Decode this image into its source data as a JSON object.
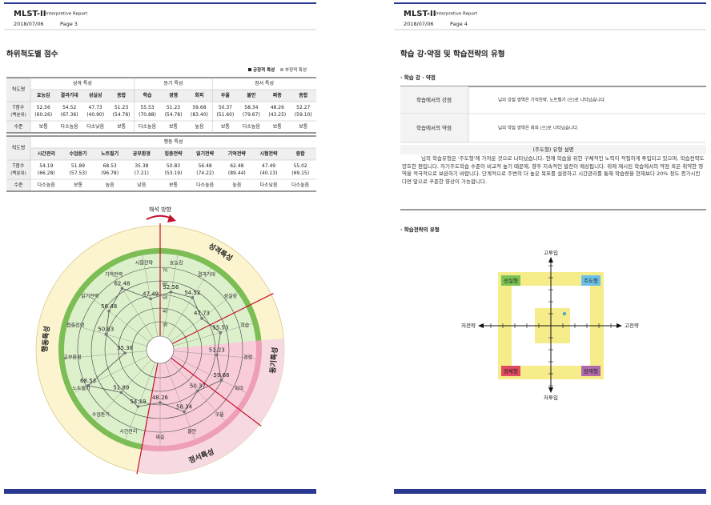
{
  "pages": [
    {
      "brand": "MLST-II",
      "subtitle": "Interpretive Report",
      "date": "2018/07/06",
      "page": "Page 3"
    },
    {
      "brand": "MLST-II",
      "subtitle": "Interpretive Report",
      "date": "2018/07/06",
      "page": "Page 4"
    }
  ],
  "scores": {
    "title": "하위척도별 점수",
    "legend": [
      "긍정적 특성",
      "부정적 특성"
    ],
    "row_header": "척도명",
    "t_label": "T점수",
    "pct_label": "(백분위)",
    "level_label": "수준",
    "groups": [
      {
        "name": "성격 특성",
        "scales": [
          {
            "name": "효능감",
            "t": 52.56,
            "pct": "(60.26)",
            "level": "보통"
          },
          {
            "name": "결과기대",
            "t": 54.52,
            "pct": "(67.36)",
            "level": "다소높음"
          },
          {
            "name": "성실성",
            "t": 47.73,
            "pct": "(40.90)",
            "level": "다소낮음"
          },
          {
            "name": "종합",
            "t": 51.23,
            "pct": "(54.78)",
            "level": "보통"
          }
        ]
      },
      {
        "name": "동기 특성",
        "scales": [
          {
            "name": "학습",
            "t": 55.53,
            "pct": "(70.88)",
            "level": "다소높음"
          },
          {
            "name": "경쟁",
            "t": 51.23,
            "pct": "(54.78)",
            "level": "보통"
          },
          {
            "name": "회피",
            "t": 59.68,
            "pct": "(83.40)",
            "level": "높음"
          }
        ]
      },
      {
        "name": "정서 특성",
        "scales": [
          {
            "name": "우울",
            "t": 50.37,
            "pct": "(51.60)",
            "level": "보통"
          },
          {
            "name": "불안",
            "t": 58.34,
            "pct": "(79.67)",
            "level": "다소높음"
          },
          {
            "name": "짜증",
            "t": 48.26,
            "pct": "(43.25)",
            "level": "보통"
          },
          {
            "name": "종합",
            "t": 52.27,
            "pct": "(59.10)",
            "level": "보통"
          }
        ]
      },
      {
        "name": "행동 특성",
        "scales": [
          {
            "name": "시간관리",
            "t": 54.19,
            "pct": "(66.28)",
            "level": "다소높음"
          },
          {
            "name": "수업듣기",
            "t": 51.89,
            "pct": "(57.53)",
            "level": "보통"
          },
          {
            "name": "노트필기",
            "t": 68.53,
            "pct": "(96.78)",
            "level": "높음"
          },
          {
            "name": "공부환경",
            "t": 35.38,
            "pct": "(7.21)",
            "level": "낮음"
          },
          {
            "name": "집중전략",
            "t": 50.83,
            "pct": "(53.19)",
            "level": "보통"
          },
          {
            "name": "읽기전략",
            "t": 56.48,
            "pct": "(74.22)",
            "level": "다소높음"
          },
          {
            "name": "기억전략",
            "t": 62.48,
            "pct": "(89.44)",
            "level": "높음"
          },
          {
            "name": "시험전략",
            "t": 47.49,
            "pct": "(40.13)",
            "level": "다소낮음"
          },
          {
            "name": "종합",
            "t": 55.02,
            "pct": "(69.15)",
            "level": "다소높음"
          }
        ]
      }
    ]
  },
  "radar": {
    "direction": "해석 방향",
    "rlim": [
      20,
      80
    ],
    "rticks": [
      30,
      40,
      50,
      60,
      70
    ],
    "sectors": [
      {
        "name": "성격특성",
        "axes": [
          {
            "name": "효능감",
            "value": 52.56
          },
          {
            "name": "결과기대",
            "value": 54.52
          },
          {
            "name": "성실성",
            "value": 47.73
          }
        ]
      },
      {
        "name": "동기특성",
        "axes": [
          {
            "name": "학습",
            "value": 55.53
          },
          {
            "name": "경쟁",
            "value": 51.23,
            "negative": true
          },
          {
            "name": "회피",
            "value": 59.68,
            "negative": true
          }
        ]
      },
      {
        "name": "정서특성",
        "axes": [
          {
            "name": "우울",
            "value": 50.37,
            "negative": true
          },
          {
            "name": "불안",
            "value": 58.34,
            "negative": true
          },
          {
            "name": "짜증",
            "value": 48.26,
            "negative": true
          }
        ]
      },
      {
        "name": "행동특성",
        "axes": [
          {
            "name": "시간관리",
            "value": 54.19
          },
          {
            "name": "수업듣기",
            "value": 51.89
          },
          {
            "name": "노트필기",
            "value": 68.53
          },
          {
            "name": "공부환경",
            "value": 35.38
          },
          {
            "name": "집중전략",
            "value": 50.83
          },
          {
            "name": "읽기전략",
            "value": 56.48
          },
          {
            "name": "기억전략",
            "value": 62.48
          },
          {
            "name": "시험전략",
            "value": 47.49
          }
        ]
      }
    ]
  },
  "strengths": {
    "title": "학습 강·약점 및 학습전략의 유형",
    "heading": "· 학습 강 · 약점",
    "rows": [
      {
        "label": "학습에서의 강점",
        "text": "님의 강점 영역은 기억전략, 노트필기 (으)로 나타났습니다."
      },
      {
        "label": "학습에서의 약점",
        "text": "님의 약점 영역은 회피 (으)로 나타났습니다."
      }
    ],
    "type_header": "(주도형) 유형 설명",
    "type_text": "님의 학습유형은 '주도형'에 가까운 것으로 나타났습니다. 현재 학습을 위한 구체적인 노력이 적절하게 투입되고 있으며, 학습전략도 양호한 편입니다. 자기주도학습 수준이 비교적 높기 때문에, 향후 지속적인 발전이 예상됩니다. 위에 제시된 학습에서의 약점 혹은 취약한 영역을 적극적으로 보완하기 바랍니다. 단계적으로 주변의 더 높은 목표를 설정하고 시간관리를 통해 학습량을 현재보다 20% 정도 증가시킨다면 앞으로 꾸준한 향상이 가능합니다."
  },
  "strategy": {
    "heading": "· 학습전략의 유형",
    "top": "고투입",
    "bottom": "저투입",
    "left": "저전략",
    "right": "고전략",
    "quadrants": [
      {
        "name": "성실형",
        "color": "#7cc353"
      },
      {
        "name": "주도형",
        "color": "#6cc0e8"
      },
      {
        "name": "정체형",
        "color": "#e04a63"
      },
      {
        "name": "잠재형",
        "color": "#b06aab"
      }
    ]
  }
}
